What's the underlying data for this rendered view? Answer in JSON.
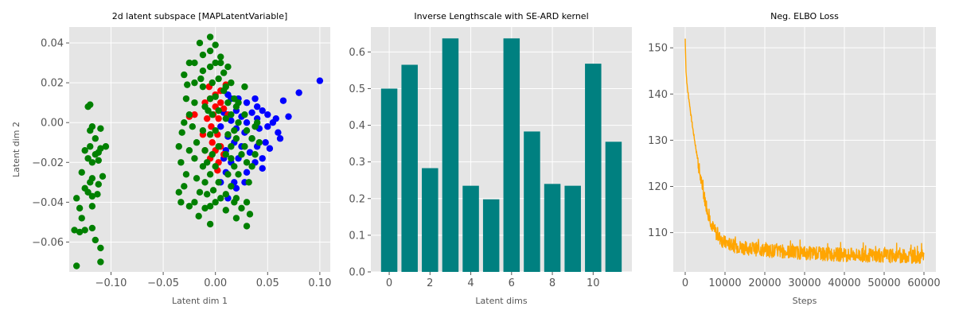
{
  "chart_data": [
    {
      "type": "scatter",
      "title": "2d latent subspace [MAPLatentVariable]",
      "xlabel": "Latent dim 1",
      "ylabel": "Latent dim 2",
      "xlim": [
        -0.14,
        0.11
      ],
      "ylim": [
        -0.075,
        0.048
      ],
      "xticks": [
        -0.1,
        -0.05,
        0.0,
        0.05,
        0.1
      ],
      "xtick_labels": [
        "−0.10",
        "−0.05",
        "0.00",
        "0.05",
        "0.10"
      ],
      "yticks": [
        -0.06,
        -0.04,
        -0.02,
        0.0,
        0.02,
        0.04
      ],
      "ytick_labels": [
        "−0.06",
        "−0.04",
        "−0.02",
        "0.00",
        "0.02",
        "0.04"
      ],
      "grid": true,
      "series": [
        {
          "color": "#0000ff",
          "points": [
            [
              0.1,
              0.021
            ],
            [
              0.08,
              0.015
            ],
            [
              0.065,
              0.011
            ],
            [
              0.07,
              0.003
            ],
            [
              0.06,
              -0.005
            ],
            [
              0.055,
              0.0
            ],
            [
              0.05,
              0.004
            ],
            [
              0.048,
              -0.01
            ],
            [
              0.045,
              0.006
            ],
            [
              0.045,
              -0.018
            ],
            [
              0.042,
              -0.003
            ],
            [
              0.04,
              0.002
            ],
            [
              0.04,
              -0.012
            ],
            [
              0.038,
              -0.02
            ],
            [
              0.035,
              0.005
            ],
            [
              0.035,
              -0.008
            ],
            [
              0.033,
              -0.015
            ],
            [
              0.03,
              0.0
            ],
            [
              0.03,
              0.01
            ],
            [
              0.03,
              -0.025
            ],
            [
              0.028,
              -0.005
            ],
            [
              0.025,
              0.003
            ],
            [
              0.025,
              -0.012
            ],
            [
              0.022,
              -0.018
            ],
            [
              0.02,
              0.006
            ],
            [
              0.02,
              -0.003
            ],
            [
              0.018,
              -0.01
            ],
            [
              0.018,
              -0.03
            ],
            [
              0.015,
              0.001
            ],
            [
              0.015,
              -0.02
            ],
            [
              0.012,
              -0.007
            ],
            [
              0.012,
              0.014
            ],
            [
              0.01,
              -0.014
            ],
            [
              0.01,
              -0.025
            ],
            [
              0.008,
              0.005
            ],
            [
              0.008,
              -0.018
            ],
            [
              0.005,
              -0.002
            ],
            [
              0.005,
              -0.03
            ],
            [
              0.015,
              0.012
            ],
            [
              0.022,
              0.012
            ],
            [
              0.038,
              0.012
            ],
            [
              0.05,
              -0.002
            ],
            [
              0.058,
              0.002
            ],
            [
              0.052,
              -0.013
            ],
            [
              0.045,
              -0.023
            ],
            [
              0.028,
              -0.03
            ],
            [
              0.04,
              0.008
            ],
            [
              0.012,
              -0.038
            ],
            [
              0.02,
              -0.033
            ],
            [
              0.062,
              -0.008
            ]
          ]
        },
        {
          "color": "#ff0000",
          "points": [
            [
              0.01,
              0.019
            ],
            [
              0.005,
              0.016
            ],
            [
              0.0,
              0.014
            ],
            [
              0.005,
              0.01
            ],
            [
              -0.005,
              0.012
            ],
            [
              0.0,
              0.008
            ],
            [
              -0.002,
              0.004
            ],
            [
              0.003,
              0.002
            ],
            [
              -0.004,
              -0.002
            ],
            [
              0.002,
              -0.006
            ],
            [
              -0.003,
              -0.01
            ],
            [
              0.0,
              -0.014
            ],
            [
              -0.005,
              -0.018
            ],
            [
              0.003,
              -0.02
            ],
            [
              -0.01,
              0.01
            ],
            [
              -0.008,
              0.002
            ],
            [
              -0.012,
              -0.006
            ],
            [
              -0.01,
              -0.014
            ],
            [
              0.008,
              -0.016
            ],
            [
              0.012,
              0.004
            ],
            [
              -0.02,
              0.004
            ],
            [
              -0.025,
              0.003
            ],
            [
              0.002,
              -0.024
            ],
            [
              -0.006,
              0.018
            ],
            [
              0.008,
              0.007
            ],
            [
              0.005,
              -0.012
            ]
          ]
        },
        {
          "color": "#008000",
          "points": [
            [
              -0.133,
              -0.072
            ],
            [
              -0.135,
              -0.054
            ],
            [
              -0.13,
              -0.055
            ],
            [
              -0.133,
              -0.038
            ],
            [
              -0.128,
              -0.048
            ],
            [
              -0.13,
              -0.043
            ],
            [
              -0.125,
              -0.054
            ],
            [
              -0.125,
              -0.033
            ],
            [
              -0.122,
              -0.035
            ],
            [
              -0.128,
              -0.025
            ],
            [
              -0.12,
              -0.03
            ],
            [
              -0.122,
              -0.018
            ],
            [
              -0.118,
              -0.028
            ],
            [
              -0.12,
              -0.012
            ],
            [
              -0.125,
              -0.014
            ],
            [
              -0.118,
              -0.02
            ],
            [
              -0.115,
              -0.016
            ],
            [
              -0.12,
              -0.004
            ],
            [
              -0.118,
              -0.002
            ],
            [
              -0.115,
              -0.008
            ],
            [
              -0.112,
              -0.015
            ],
            [
              -0.11,
              -0.013
            ],
            [
              -0.108,
              -0.027
            ],
            [
              -0.105,
              -0.012
            ],
            [
              -0.11,
              -0.003
            ],
            [
              -0.122,
              0.008
            ],
            [
              -0.12,
              0.009
            ],
            [
              -0.118,
              -0.042
            ],
            [
              -0.113,
              -0.036
            ],
            [
              -0.112,
              -0.031
            ],
            [
              -0.118,
              -0.053
            ],
            [
              -0.115,
              -0.059
            ],
            [
              -0.11,
              -0.063
            ],
            [
              -0.11,
              -0.07
            ],
            [
              -0.112,
              -0.019
            ],
            [
              -0.118,
              -0.037
            ],
            [
              -0.03,
              0.024
            ],
            [
              -0.028,
              0.012
            ],
            [
              -0.03,
              0.0
            ],
            [
              -0.032,
              -0.005
            ],
            [
              -0.035,
              -0.012
            ],
            [
              -0.033,
              -0.02
            ],
            [
              -0.028,
              -0.026
            ],
            [
              -0.03,
              -0.032
            ],
            [
              -0.035,
              -0.035
            ],
            [
              -0.033,
              -0.04
            ],
            [
              -0.025,
              -0.042
            ],
            [
              -0.02,
              0.03
            ],
            [
              -0.02,
              0.02
            ],
            [
              -0.02,
              0.01
            ],
            [
              -0.022,
              -0.002
            ],
            [
              -0.018,
              -0.01
            ],
            [
              -0.02,
              -0.018
            ],
            [
              -0.018,
              -0.028
            ],
            [
              -0.015,
              -0.035
            ],
            [
              -0.02,
              -0.04
            ],
            [
              -0.015,
              0.04
            ],
            [
              -0.012,
              0.034
            ],
            [
              -0.012,
              0.026
            ],
            [
              -0.012,
              0.018
            ],
            [
              -0.01,
              0.008
            ],
            [
              -0.012,
              -0.004
            ],
            [
              -0.01,
              -0.014
            ],
            [
              -0.012,
              -0.022
            ],
            [
              -0.01,
              -0.03
            ],
            [
              -0.008,
              -0.036
            ],
            [
              -0.01,
              -0.043
            ],
            [
              -0.005,
              0.043
            ],
            [
              -0.005,
              0.036
            ],
            [
              -0.005,
              0.028
            ],
            [
              -0.003,
              0.02
            ],
            [
              -0.005,
              0.012
            ],
            [
              -0.003,
              0.004
            ],
            [
              -0.005,
              -0.006
            ],
            [
              -0.003,
              -0.016
            ],
            [
              -0.005,
              -0.026
            ],
            [
              -0.002,
              -0.034
            ],
            [
              -0.005,
              -0.042
            ],
            [
              -0.005,
              -0.051
            ],
            [
              0.0,
              0.039
            ],
            [
              0.0,
              0.03
            ],
            [
              0.003,
              0.022
            ],
            [
              0.0,
              0.013
            ],
            [
              0.003,
              0.006
            ],
            [
              0.0,
              -0.004
            ],
            [
              0.003,
              -0.012
            ],
            [
              0.0,
              -0.022
            ],
            [
              0.003,
              -0.03
            ],
            [
              0.0,
              -0.04
            ],
            [
              0.005,
              0.033
            ],
            [
              0.008,
              0.025
            ],
            [
              0.01,
              0.018
            ],
            [
              0.012,
              0.01
            ],
            [
              0.01,
              0.002
            ],
            [
              0.012,
              -0.006
            ],
            [
              0.01,
              -0.016
            ],
            [
              0.012,
              -0.026
            ],
            [
              0.01,
              -0.036
            ],
            [
              0.01,
              -0.044
            ],
            [
              0.015,
              0.02
            ],
            [
              0.018,
              0.012
            ],
            [
              0.015,
              0.004
            ],
            [
              0.018,
              -0.004
            ],
            [
              0.015,
              -0.012
            ],
            [
              0.018,
              -0.022
            ],
            [
              0.015,
              -0.032
            ],
            [
              0.018,
              -0.04
            ],
            [
              0.005,
              0.03
            ],
            [
              0.02,
              0.008
            ],
            [
              0.022,
              0.0
            ],
            [
              0.02,
              -0.008
            ],
            [
              0.025,
              -0.016
            ],
            [
              0.022,
              -0.026
            ],
            [
              0.02,
              -0.038
            ],
            [
              0.025,
              -0.043
            ],
            [
              0.02,
              -0.048
            ],
            [
              0.028,
              0.004
            ],
            [
              0.03,
              -0.004
            ],
            [
              0.028,
              -0.012
            ],
            [
              0.03,
              -0.02
            ],
            [
              0.032,
              -0.03
            ],
            [
              0.03,
              -0.04
            ],
            [
              0.033,
              -0.046
            ],
            [
              0.035,
              -0.008
            ],
            [
              0.035,
              -0.022
            ],
            [
              0.038,
              -0.002
            ],
            [
              0.038,
              -0.016
            ],
            [
              0.03,
              -0.052
            ],
            [
              0.028,
              0.018
            ],
            [
              0.04,
              0.0
            ],
            [
              0.042,
              -0.01
            ],
            [
              -0.025,
              0.004
            ],
            [
              -0.025,
              -0.014
            ],
            [
              -0.027,
              0.019
            ],
            [
              -0.025,
              0.03
            ],
            [
              -0.014,
              0.022
            ],
            [
              -0.007,
              0.006
            ],
            [
              -0.008,
              -0.02
            ],
            [
              0.005,
              -0.038
            ],
            [
              0.008,
              0.016
            ],
            [
              0.015,
              -0.018
            ],
            [
              0.022,
              0.01
            ],
            [
              -0.016,
              -0.047
            ],
            [
              0.012,
              0.028
            ]
          ]
        }
      ]
    },
    {
      "type": "bar",
      "title": "Inverse Lengthscale with SE-ARD kernel",
      "xlabel": "Latent dims",
      "ylabel": "",
      "color": "#008080",
      "categories": [
        0,
        1,
        2,
        3,
        4,
        5,
        6,
        7,
        8,
        9,
        10,
        11
      ],
      "values": [
        0.5,
        0.565,
        0.283,
        0.637,
        0.235,
        0.198,
        0.637,
        0.383,
        0.24,
        0.235,
        0.568,
        0.355
      ],
      "xlim": [
        -0.9,
        11.9
      ],
      "ylim": [
        0,
        0.668
      ],
      "xticks": [
        0,
        2,
        4,
        6,
        8,
        10
      ],
      "xtick_labels": [
        "0",
        "2",
        "4",
        "6",
        "8",
        "10"
      ],
      "yticks": [
        0.0,
        0.1,
        0.2,
        0.3,
        0.4,
        0.5,
        0.6
      ],
      "ytick_labels": [
        "0.0",
        "0.1",
        "0.2",
        "0.3",
        "0.4",
        "0.5",
        "0.6"
      ],
      "grid": true
    },
    {
      "type": "line",
      "title": "Neg. ELBO Loss",
      "xlabel": "Steps",
      "ylabel": "",
      "color": "#ffa500",
      "x": [
        0,
        200,
        500,
        1000,
        1500,
        2000,
        3000,
        4000,
        5000,
        6000,
        7000,
        8000,
        9000,
        10000,
        12000,
        15000,
        20000,
        25000,
        30000,
        35000,
        40000,
        45000,
        50000,
        55000,
        60000
      ],
      "y": [
        152.0,
        145.0,
        141.5,
        138.5,
        135.0,
        132.0,
        126.5,
        121.0,
        117.0,
        113.5,
        111.0,
        109.5,
        108.5,
        107.8,
        107.2,
        106.7,
        106.2,
        105.9,
        105.6,
        105.4,
        105.2,
        105.1,
        105.0,
        104.9,
        104.8
      ],
      "noise_band": 1.5,
      "xlim": [
        -3000,
        63000
      ],
      "ylim": [
        101.5,
        154.5
      ],
      "xticks": [
        0,
        10000,
        20000,
        30000,
        40000,
        50000,
        60000
      ],
      "xtick_labels": [
        "0",
        "10000",
        "20000",
        "30000",
        "40000",
        "50000",
        "60000"
      ],
      "yticks": [
        110,
        120,
        130,
        140,
        150
      ],
      "ytick_labels": [
        "110",
        "120",
        "130",
        "140",
        "150"
      ],
      "grid": true
    }
  ]
}
